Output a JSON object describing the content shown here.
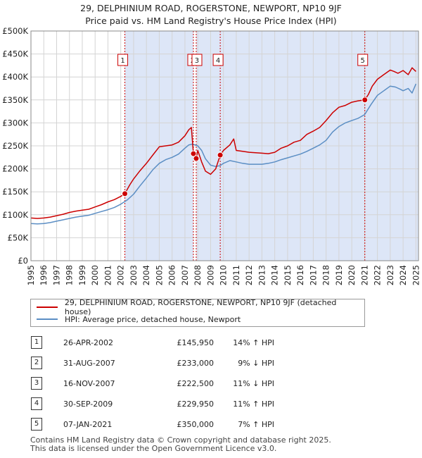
{
  "title_line1": "29, DELPHINIUM ROAD, ROGERSTONE, NEWPORT, NP10 9JF",
  "title_line2": "Price paid vs. HM Land Registry's House Price Index (HPI)",
  "legend": {
    "property_label": "29, DELPHINIUM ROAD, ROGERSTONE, NEWPORT, NP10 9JF (detached house)",
    "hpi_label": "HPI: Average price, detached house, Newport",
    "property_color": "#cc0000",
    "hpi_color": "#5b8ec4"
  },
  "transactions": [
    {
      "num": "1",
      "date": "26-APR-2002",
      "price": "£145,950",
      "hpi": "14% ↑ HPI"
    },
    {
      "num": "2",
      "date": "31-AUG-2007",
      "price": "£233,000",
      "hpi": "9% ↓ HPI"
    },
    {
      "num": "3",
      "date": "16-NOV-2007",
      "price": "£222,500",
      "hpi": "11% ↓ HPI"
    },
    {
      "num": "4",
      "date": "30-SEP-2009",
      "price": "£229,950",
      "hpi": "11% ↑ HPI"
    },
    {
      "num": "5",
      "date": "07-JAN-2021",
      "price": "£350,000",
      "hpi": "7% ↑ HPI"
    }
  ],
  "footer_line1": "Contains HM Land Registry data © Crown copyright and database right 2025.",
  "footer_line2": "This data is licensed under the Open Government Licence v3.0.",
  "chart_data": {
    "type": "line",
    "title": "29, DELPHINIUM ROAD, ROGERSTONE, NEWPORT, NP10 9JF",
    "subtitle": "Price paid vs. HM Land Registry's House Price Index (HPI)",
    "xlim": [
      1995,
      2025.2
    ],
    "ylim": [
      0,
      500000
    ],
    "x_ticks": [
      1995,
      1996,
      1997,
      1998,
      1999,
      2000,
      2001,
      2002,
      2003,
      2004,
      2005,
      2006,
      2007,
      2008,
      2009,
      2010,
      2011,
      2012,
      2013,
      2014,
      2015,
      2016,
      2017,
      2018,
      2019,
      2020,
      2021,
      2022,
      2023,
      2024,
      2025
    ],
    "y_ticks": [
      0,
      50000,
      100000,
      150000,
      200000,
      250000,
      300000,
      350000,
      400000,
      450000,
      500000
    ],
    "y_tick_labels": [
      "£0",
      "£50K",
      "£100K",
      "£150K",
      "£200K",
      "£250K",
      "£300K",
      "£350K",
      "£400K",
      "£450K",
      "£500K"
    ],
    "grid": true,
    "legend_position": "below",
    "series": [
      {
        "name": "29, DELPHINIUM ROAD, ROGERSTONE, NEWPORT, NP10 9JF (detached house)",
        "color": "#cc0000",
        "x": [
          1995,
          1995.5,
          1996,
          1996.5,
          1997,
          1997.5,
          1998,
          1998.5,
          1999,
          1999.5,
          2000,
          2000.5,
          2001,
          2001.5,
          2002,
          2002.32,
          2002.7,
          2003,
          2003.5,
          2004,
          2004.5,
          2005,
          2005.5,
          2006,
          2006.5,
          2007,
          2007.3,
          2007.5,
          2007.66,
          2007.88,
          2008,
          2008.3,
          2008.6,
          2009,
          2009.4,
          2009.75,
          2010,
          2010.5,
          2010.8,
          2011,
          2011.5,
          2012,
          2012.5,
          2013,
          2013.5,
          2014,
          2014.5,
          2015,
          2015.5,
          2016,
          2016.5,
          2017,
          2017.5,
          2018,
          2018.5,
          2019,
          2019.5,
          2020,
          2020.5,
          2021.02,
          2021.3,
          2021.6,
          2022,
          2022.5,
          2023,
          2023.3,
          2023.6,
          2024,
          2024.4,
          2024.7,
          2025
        ],
        "y": [
          93000,
          92000,
          93000,
          95000,
          98000,
          101000,
          105000,
          108000,
          110000,
          112000,
          117000,
          122000,
          128000,
          133000,
          140000,
          145950,
          165000,
          178000,
          196000,
          212000,
          230000,
          248000,
          250000,
          252000,
          258000,
          272000,
          285000,
          290000,
          233000,
          222500,
          240000,
          215000,
          195000,
          188000,
          200000,
          229950,
          240000,
          252000,
          265000,
          240000,
          238000,
          236000,
          235000,
          234000,
          233000,
          236000,
          245000,
          250000,
          258000,
          262000,
          275000,
          282000,
          290000,
          305000,
          322000,
          334000,
          338000,
          345000,
          348000,
          350000,
          362000,
          380000,
          395000,
          405000,
          415000,
          412000,
          408000,
          414000,
          405000,
          420000,
          412000
        ]
      },
      {
        "name": "HPI: Average price, detached house, Newport",
        "color": "#5b8ec4",
        "x": [
          1995,
          1995.5,
          1996,
          1996.5,
          1997,
          1997.5,
          1998,
          1998.5,
          1999,
          1999.5,
          2000,
          2000.5,
          2001,
          2001.5,
          2002,
          2002.5,
          2003,
          2003.5,
          2004,
          2004.5,
          2005,
          2005.5,
          2006,
          2006.5,
          2007,
          2007.3,
          2007.6,
          2008,
          2008.3,
          2008.6,
          2009,
          2009.4,
          2009.75,
          2010,
          2010.5,
          2011,
          2011.5,
          2012,
          2012.5,
          2013,
          2013.5,
          2014,
          2014.5,
          2015,
          2015.5,
          2016,
          2016.5,
          2017,
          2017.5,
          2018,
          2018.5,
          2019,
          2019.5,
          2020,
          2020.5,
          2021,
          2021.5,
          2022,
          2022.5,
          2023,
          2023.4,
          2023.8,
          2024,
          2024.4,
          2024.7,
          2025
        ],
        "y": [
          81000,
          80000,
          81000,
          83000,
          86000,
          89000,
          92000,
          95000,
          97000,
          99000,
          103000,
          107000,
          111000,
          116000,
          123000,
          132000,
          145000,
          163000,
          180000,
          198000,
          212000,
          220000,
          225000,
          232000,
          245000,
          252000,
          254000,
          250000,
          240000,
          222000,
          208000,
          205000,
          207000,
          212000,
          218000,
          215000,
          212000,
          210000,
          210000,
          210000,
          212000,
          215000,
          220000,
          224000,
          228000,
          232000,
          238000,
          245000,
          252000,
          262000,
          280000,
          292000,
          300000,
          305000,
          310000,
          318000,
          340000,
          360000,
          370000,
          380000,
          378000,
          373000,
          370000,
          375000,
          365000,
          385000
        ]
      }
    ],
    "sale_markers": [
      {
        "label": "1",
        "x": 2002.32,
        "y": 145950
      },
      {
        "label": "2",
        "x": 2007.66,
        "y": 233000
      },
      {
        "label": "3",
        "x": 2007.88,
        "y": 222500
      },
      {
        "label": "4",
        "x": 2009.75,
        "y": 229950
      },
      {
        "label": "5",
        "x": 2021.02,
        "y": 350000
      }
    ]
  }
}
